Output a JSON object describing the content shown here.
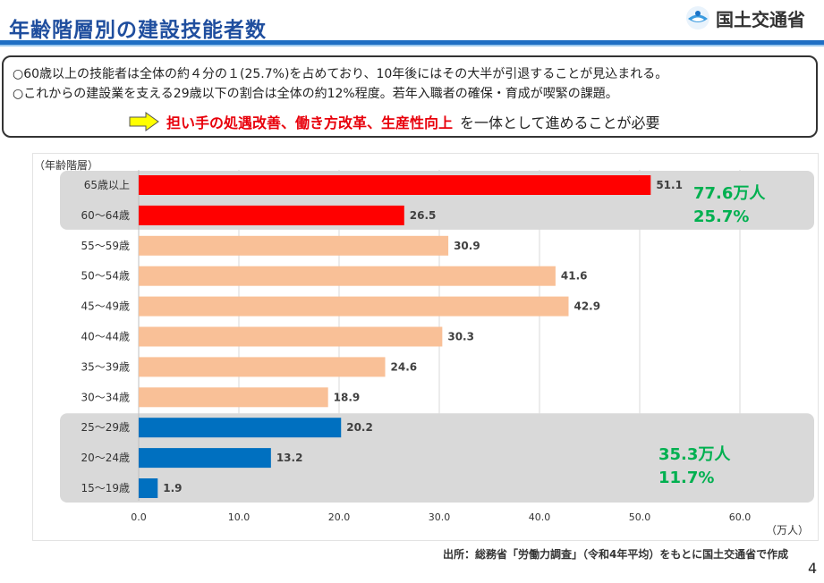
{
  "header": {
    "title": "年齢階層別の建設技能者数",
    "logo_text": "国土交通省"
  },
  "summary": {
    "line1": "○60歳以上の技能者は全体の約４分の１(25.7%)を占めており、10年後にはその大半が引退することが見込まれる。",
    "line2": "○これからの建設業を支える29歳以下の割合は全体の約12%程度。若年入職者の確保・育成が喫緊の課題。",
    "conclusion_highlight": "担い手の処遇改善、働き方改革、生産性向上",
    "conclusion_rest": "を一体として進めることが必要"
  },
  "chart_data": {
    "type": "bar",
    "orientation": "horizontal",
    "ylabel": "（年齢階層）",
    "xlabel": "（万人）",
    "xlim": [
      0,
      60
    ],
    "xticks": [
      0,
      10,
      20,
      30,
      40,
      50,
      60
    ],
    "xtick_labels": [
      "0.0",
      "10.0",
      "20.0",
      "30.0",
      "40.0",
      "50.0",
      "60.0"
    ],
    "grid": "vertical",
    "categories": [
      "65歳以上",
      "60～64歳",
      "55～59歳",
      "50～54歳",
      "45～49歳",
      "40～44歳",
      "35～39歳",
      "30～34歳",
      "25～29歳",
      "20～24歳",
      "15～19歳"
    ],
    "values": [
      51.1,
      26.5,
      30.9,
      41.6,
      42.9,
      30.3,
      24.6,
      18.9,
      20.2,
      13.2,
      1.9
    ],
    "value_labels": [
      "51.1",
      "26.5",
      "30.9",
      "41.6",
      "42.9",
      "30.3",
      "24.6",
      "18.9",
      "20.2",
      "13.2",
      "1.9"
    ],
    "bar_colors": [
      "#ff0000",
      "#ff0000",
      "#f9c097",
      "#f9c097",
      "#f9c097",
      "#f9c097",
      "#f9c097",
      "#f9c097",
      "#0070c0",
      "#0070c0",
      "#0070c0"
    ],
    "groups": [
      {
        "rows": [
          0,
          1
        ],
        "total": "77.6万人",
        "share": "25.7%"
      },
      {
        "rows": [
          8,
          10
        ],
        "total": "35.3万人",
        "share": "11.7%"
      }
    ],
    "annotation_color": "#00b050"
  },
  "footer": {
    "source": "出所：総務省「労働力調査」（令和4年平均）をもとに国土交通省で作成",
    "page_number": "4"
  },
  "colors": {
    "title": "#1f4e9e",
    "highlight": "#e8000b",
    "arrow": "#ffff00"
  }
}
